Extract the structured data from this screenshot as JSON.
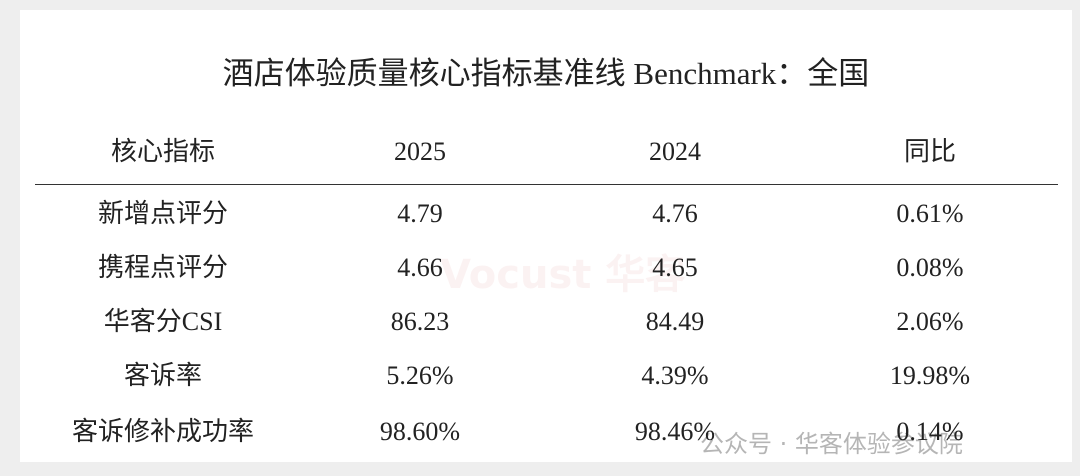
{
  "title": "酒店体验质量核心指标基准线 Benchmark：全国",
  "table": {
    "header": [
      "核心指标",
      "2025",
      "2024",
      "同比"
    ],
    "rows": [
      [
        "新增点评分",
        "4.79",
        "4.76",
        "0.61%"
      ],
      [
        "携程点评分",
        "4.66",
        "4.65",
        "0.08%"
      ],
      [
        "华客分CSI",
        "86.23",
        "84.49",
        "2.06%"
      ],
      [
        "客诉率",
        "5.26%",
        "4.39%",
        "19.98%"
      ],
      [
        "客诉修补成功率",
        "98.60%",
        "98.46%",
        "0.14%"
      ]
    ]
  },
  "watermarks": [
    "Vocust 华客",
    "公众号 · 华客体验参议院"
  ]
}
